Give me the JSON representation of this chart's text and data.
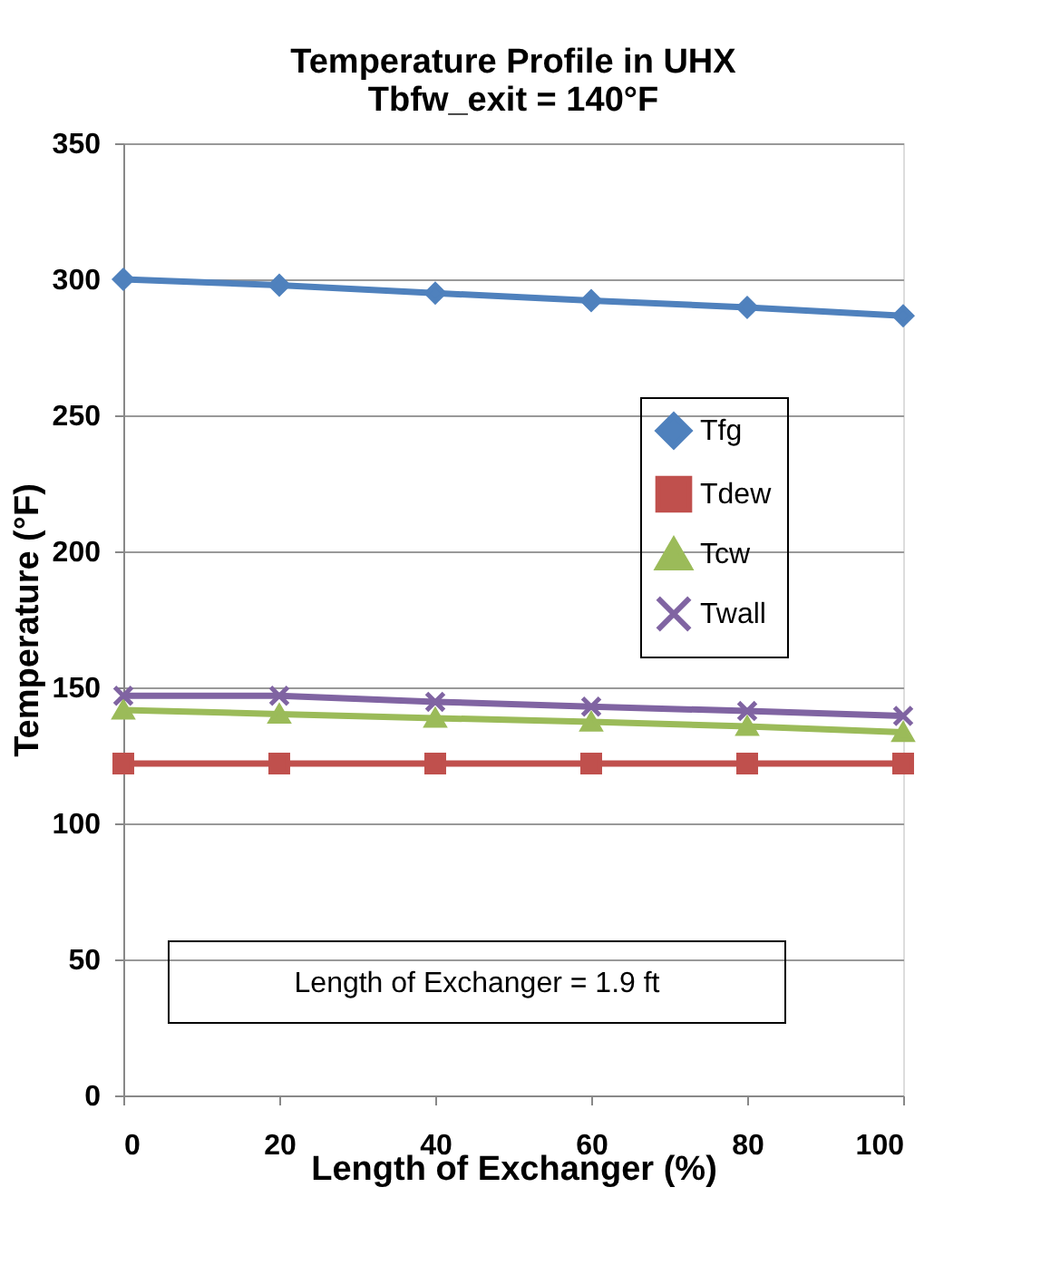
{
  "chart_data": {
    "type": "line",
    "title": [
      "Temperature Profile in UHX",
      "Tbfw_exit = 140°F"
    ],
    "xlabel": "Length of Exchanger (%)",
    "ylabel": "Temperature (°F)",
    "x": [
      0,
      20,
      40,
      60,
      80,
      100
    ],
    "series": [
      {
        "name": "Tfg",
        "color": "#4f81bd",
        "marker": "diamond",
        "values": [
          300,
          297.8,
          294.9,
          292.2,
          289.7,
          286.6
        ]
      },
      {
        "name": "Tdew",
        "color": "#c0504d",
        "marker": "square",
        "values": [
          122,
          122,
          122,
          122,
          122,
          122
        ]
      },
      {
        "name": "Tcw",
        "color": "#9bbb59",
        "marker": "triangle",
        "values": [
          141.7,
          140.2,
          138.7,
          137.3,
          135.7,
          133.5
        ]
      },
      {
        "name": "Twall",
        "color": "#8064a2",
        "marker": "cross",
        "values": [
          146.9,
          146.9,
          144.7,
          142.9,
          141.3,
          139.5
        ]
      }
    ],
    "xlim": [
      0,
      100
    ],
    "xticks": [
      0,
      20,
      40,
      60,
      80,
      100
    ],
    "ylim": [
      0,
      350
    ],
    "yticks": [
      0,
      50,
      100,
      150,
      200,
      250,
      300,
      350
    ],
    "grid": "y",
    "legend": "right",
    "line_style": "solid",
    "annotations": [
      "Length of Exchanger = 1.9 ft"
    ]
  }
}
